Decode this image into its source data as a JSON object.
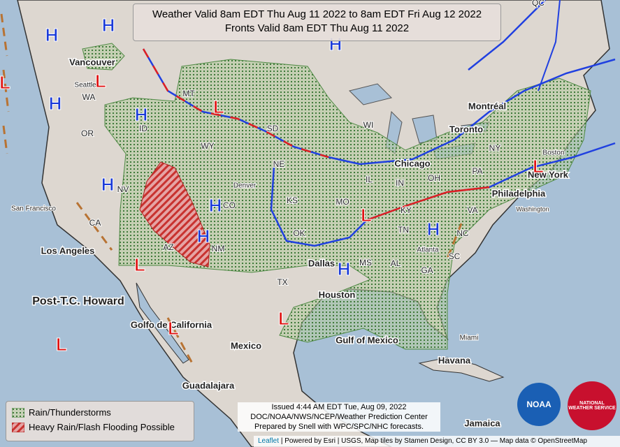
{
  "header": {
    "title_line1": "Weather Valid 8am EDT Thu Aug 11 2022 to 8am EDT Fri Aug 12 2022",
    "title_line2": "Fronts Valid 8am EDT Thu Aug 11 2022"
  },
  "legend": {
    "items": [
      "Rain/Thunderstorms",
      "Heavy Rain/Flash Flooding Possible"
    ]
  },
  "issued": {
    "lines": [
      "Issued 4:44 AM EDT Tue, Aug 09, 2022",
      "DOC/NOAA/NWS/NCEP/Weather Prediction Center",
      "Prepared by Snell with WPC/SPC/NHC forecasts."
    ]
  },
  "attribution": {
    "leaflet": "Leaflet",
    "rest": "| Powered by Esri | USGS, Map tiles by Stamen Design, CC BY 3.0 — Map data © OpenStreetMap"
  },
  "map_labels": [
    "QC",
    "Vancouver",
    "Seattle",
    "WA",
    "MT",
    "OR",
    "ID",
    "WY",
    "SD",
    "WI",
    "Montréal",
    "Toronto",
    "NY",
    "Boston",
    "PA",
    "OH",
    "IN",
    "IL",
    "NE",
    "Chicago",
    "Denver",
    "CO",
    "NV",
    "KS",
    "MO",
    "New York",
    "Philadelphia",
    "Washington",
    "KY",
    "VA",
    "San Francisco",
    "CA",
    "OK",
    "TN",
    "NC",
    "AZ",
    "NM",
    "Los Angeles",
    "Atlanta",
    "SC",
    "Dallas",
    "MS",
    "AL",
    "GA",
    "TX",
    "Houston",
    "Post-T.C. Howard",
    "Golfo de California",
    "Miami",
    "Gulf of Mexico",
    "Mexico",
    "Havana",
    "Guadalajara",
    "Jamaica"
  ],
  "pressure_centers": {
    "highs": [
      "H",
      "H",
      "H",
      "H",
      "H",
      "H",
      "H",
      "H",
      "H",
      "H"
    ],
    "lows": [
      "L",
      "L",
      "L",
      "L",
      "L",
      "L",
      "L",
      "L",
      "L"
    ]
  },
  "logos": {
    "noaa": "NOAA",
    "nws": "NATIONAL WEATHER SERVICE"
  }
}
